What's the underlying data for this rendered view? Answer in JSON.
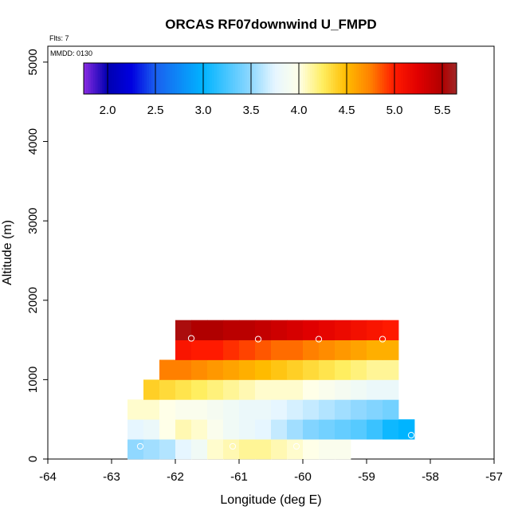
{
  "chart_data": {
    "type": "heatmap",
    "title": "ORCAS RF07downwind U_FMPD",
    "annotations": {
      "flights": "Flts: 7",
      "date": "MMDD: 0130"
    },
    "xlabel": "Longitude (deg E)",
    "ylabel": "Altitude (m)",
    "xlim": [
      -64,
      -57
    ],
    "ylim": [
      0,
      5200
    ],
    "x_ticks": [
      -64,
      -63,
      -62,
      -61,
      -60,
      -59,
      -58,
      -57
    ],
    "y_ticks": [
      0,
      1000,
      2000,
      3000,
      4000,
      5000
    ],
    "colorbar": {
      "range": [
        1.75,
        5.65
      ],
      "ticks": [
        2.0,
        2.5,
        3.0,
        3.5,
        4.0,
        4.5,
        5.0,
        5.5
      ],
      "stops": [
        {
          "v": 1.75,
          "c": "#8a2be2"
        },
        {
          "v": 2.0,
          "c": "#0000b0"
        },
        {
          "v": 2.25,
          "c": "#0000e0"
        },
        {
          "v": 2.5,
          "c": "#1a5fef"
        },
        {
          "v": 3.0,
          "c": "#00b4ff"
        },
        {
          "v": 3.5,
          "c": "#90d8ff"
        },
        {
          "v": 3.75,
          "c": "#e6f6ff"
        },
        {
          "v": 4.0,
          "c": "#ffffe8"
        },
        {
          "v": 4.25,
          "c": "#ffee60"
        },
        {
          "v": 4.5,
          "c": "#ffbb00"
        },
        {
          "v": 4.75,
          "c": "#ff8000"
        },
        {
          "v": 5.0,
          "c": "#ff1a00"
        },
        {
          "v": 5.25,
          "c": "#e00000"
        },
        {
          "v": 5.5,
          "c": "#b00000"
        },
        {
          "v": 5.65,
          "c": "#a02828"
        }
      ]
    },
    "grid": false,
    "cell_width_deg": 0.25,
    "cell_height_m": 250,
    "rows": [
      {
        "alt": 0,
        "lon_start": -62.75,
        "values": [
          3.5,
          3.55,
          3.6,
          3.75,
          3.85,
          4.05,
          4.1,
          4.15,
          4.15,
          4.1,
          4.05,
          4.0,
          3.95,
          3.95
        ]
      },
      {
        "alt": 250,
        "lon_start": -62.75,
        "values": [
          3.75,
          3.8,
          4.0,
          4.1,
          4.05,
          3.95,
          3.85,
          3.8,
          3.75,
          3.65,
          3.55,
          3.45,
          3.4,
          3.35,
          3.3,
          3.2,
          3.05,
          3.0
        ]
      },
      {
        "alt": 500,
        "lon_start": -62.75,
        "values": [
          4.05,
          4.05,
          4.0,
          3.95,
          3.95,
          3.9,
          3.85,
          3.8,
          3.8,
          3.75,
          3.7,
          3.65,
          3.6,
          3.55,
          3.5,
          3.45,
          3.4
        ]
      },
      {
        "alt": 750,
        "lon_start": -62.5,
        "values": [
          4.4,
          4.35,
          4.3,
          4.25,
          4.2,
          4.15,
          4.1,
          4.05,
          4.05,
          4.05,
          4.0,
          3.95,
          3.9,
          3.85,
          3.8,
          3.8
        ]
      },
      {
        "alt": 1000,
        "lon_start": -62.25,
        "values": [
          4.75,
          4.75,
          4.7,
          4.65,
          4.6,
          4.55,
          4.5,
          4.45,
          4.4,
          4.35,
          4.3,
          4.25,
          4.2,
          4.15,
          4.15
        ]
      },
      {
        "alt": 1250,
        "lon_start": -62.0,
        "values": [
          5.05,
          5.0,
          5.0,
          4.95,
          4.9,
          4.85,
          4.8,
          4.8,
          4.75,
          4.7,
          4.65,
          4.6,
          4.55,
          4.55
        ]
      },
      {
        "alt": 1500,
        "lon_start": -62.0,
        "values": [
          5.55,
          5.5,
          5.5,
          5.45,
          5.45,
          5.4,
          5.35,
          5.3,
          5.25,
          5.2,
          5.15,
          5.1,
          5.05,
          5.0
        ]
      }
    ],
    "markers": [
      {
        "lon": -61.75,
        "alt": 1520
      },
      {
        "lon": -60.7,
        "alt": 1510
      },
      {
        "lon": -59.75,
        "alt": 1510
      },
      {
        "lon": -58.75,
        "alt": 1510
      },
      {
        "lon": -62.55,
        "alt": 160
      },
      {
        "lon": -61.1,
        "alt": 160
      },
      {
        "lon": -60.1,
        "alt": 160
      },
      {
        "lon": -59.15,
        "alt": 160
      },
      {
        "lon": -58.3,
        "alt": 300
      }
    ]
  }
}
